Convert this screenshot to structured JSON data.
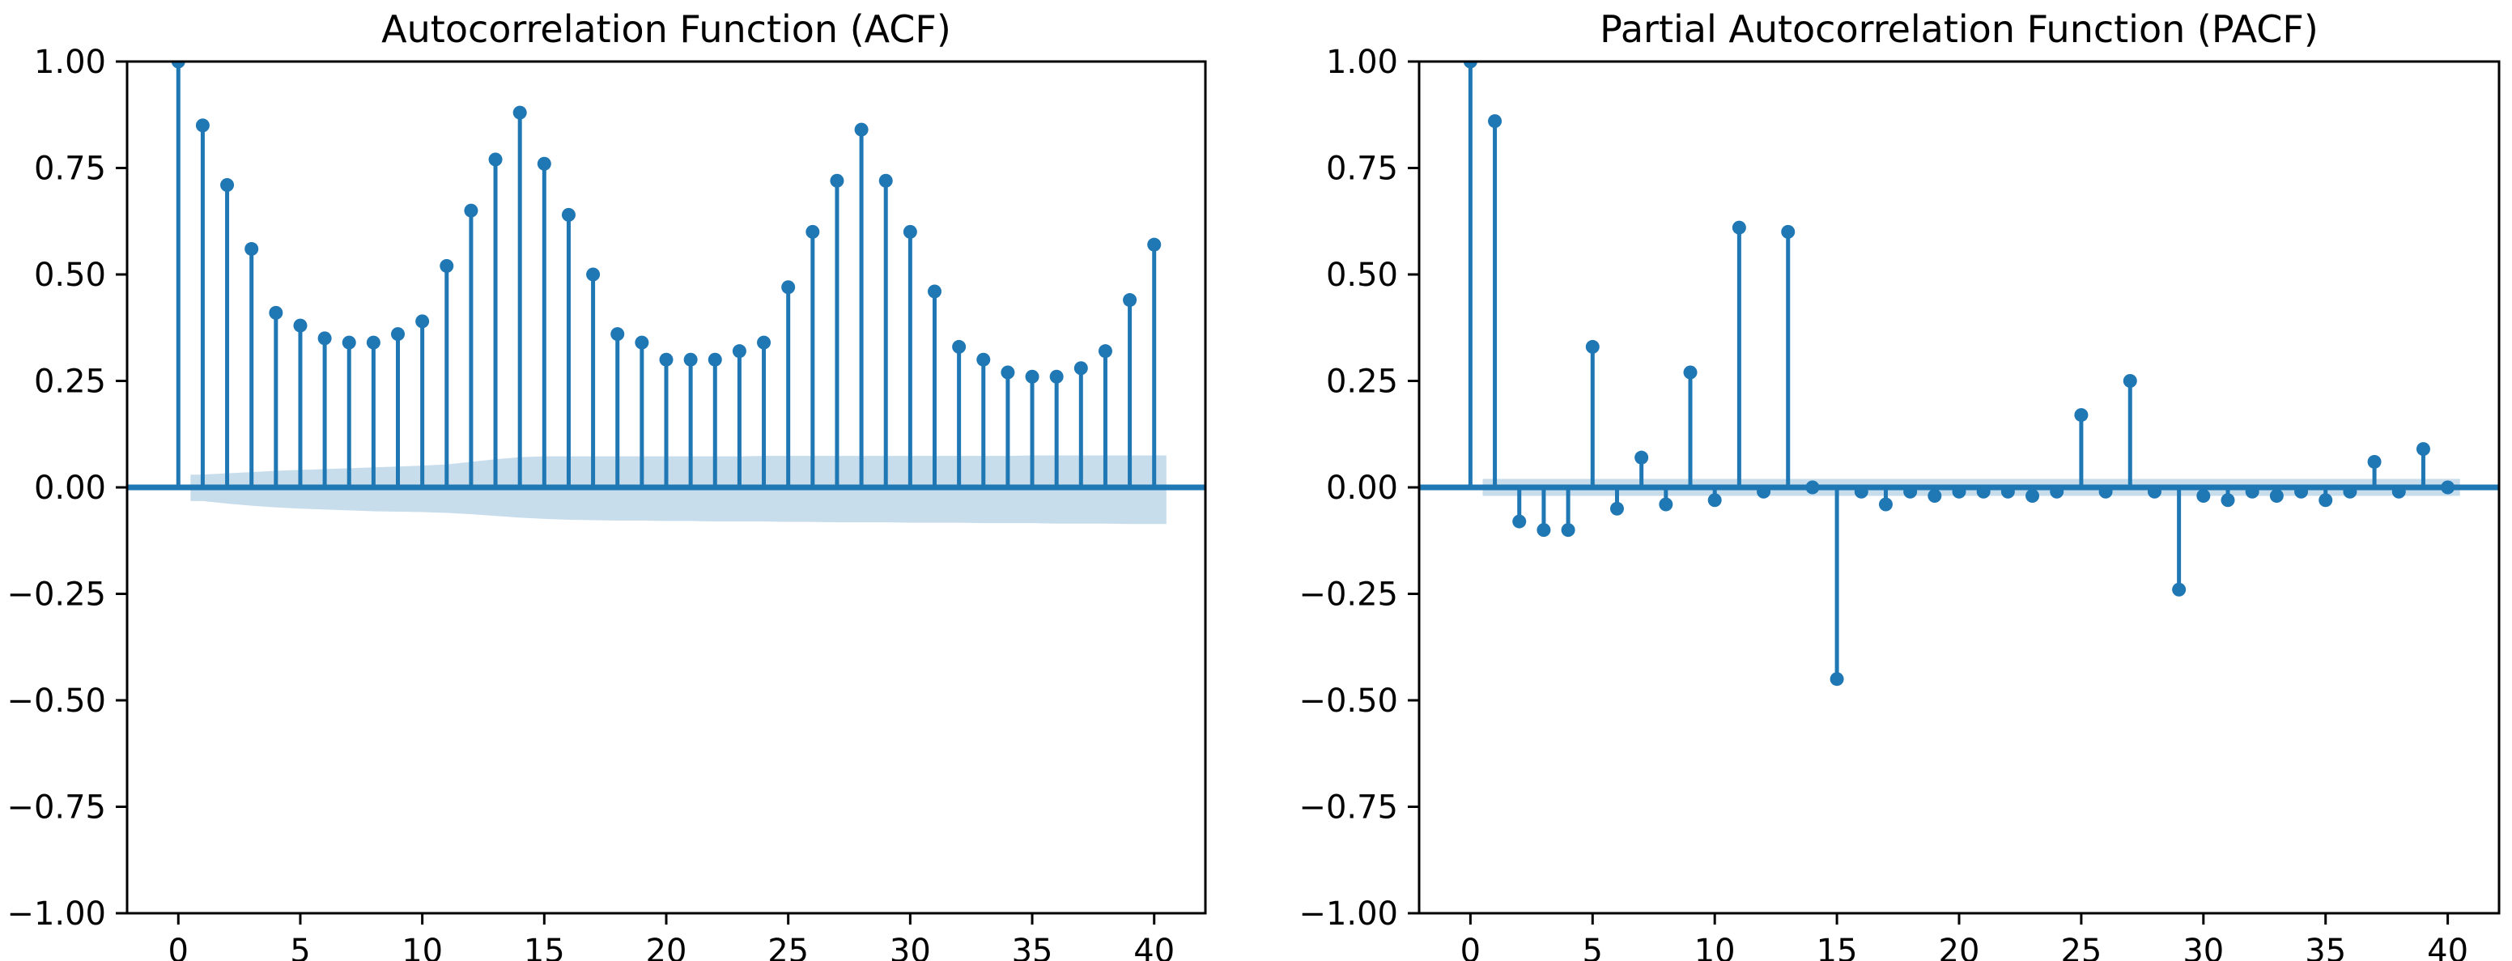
{
  "figure": {
    "background": "#ffffff",
    "panels": [
      "ACF",
      "PACF"
    ]
  },
  "chart_data": [
    {
      "type": "stem",
      "title": "Autocorrelation Function (ACF)",
      "xlabel": "",
      "ylabel": "",
      "xlim": [
        -2.1,
        42.1
      ],
      "ylim": [
        -1.0,
        1.0
      ],
      "grid": false,
      "legend": null,
      "lags": [
        0,
        1,
        2,
        3,
        4,
        5,
        6,
        7,
        8,
        9,
        10,
        11,
        12,
        13,
        14,
        15,
        16,
        17,
        18,
        19,
        20,
        21,
        22,
        23,
        24,
        25,
        26,
        27,
        28,
        29,
        30,
        31,
        32,
        33,
        34,
        35,
        36,
        37,
        38,
        39,
        40
      ],
      "values": [
        1.0,
        0.85,
        0.71,
        0.56,
        0.41,
        0.38,
        0.35,
        0.34,
        0.34,
        0.36,
        0.39,
        0.52,
        0.65,
        0.77,
        0.88,
        0.76,
        0.64,
        0.5,
        0.36,
        0.34,
        0.3,
        0.3,
        0.3,
        0.32,
        0.34,
        0.47,
        0.6,
        0.72,
        0.84,
        0.72,
        0.6,
        0.46,
        0.33,
        0.3,
        0.27,
        0.26,
        0.26,
        0.28,
        0.32,
        0.44,
        0.57
      ],
      "conf_band": {
        "start_lag": 1,
        "upper": [
          0.03,
          0.033,
          0.036,
          0.039,
          0.041,
          0.043,
          0.045,
          0.047,
          0.049,
          0.051,
          0.054,
          0.06,
          0.066,
          0.071,
          0.073,
          0.073,
          0.073,
          0.073,
          0.073,
          0.073,
          0.073,
          0.073,
          0.073,
          0.074,
          0.074,
          0.074,
          0.074,
          0.074,
          0.074,
          0.074,
          0.074,
          0.074,
          0.074,
          0.074,
          0.075,
          0.075,
          0.075,
          0.075,
          0.075,
          0.075
        ],
        "lower": [
          -0.032,
          -0.038,
          -0.043,
          -0.047,
          -0.05,
          -0.052,
          -0.054,
          -0.056,
          -0.057,
          -0.058,
          -0.06,
          -0.063,
          -0.067,
          -0.071,
          -0.074,
          -0.076,
          -0.077,
          -0.078,
          -0.078,
          -0.079,
          -0.079,
          -0.08,
          -0.08,
          -0.08,
          -0.081,
          -0.081,
          -0.082,
          -0.082,
          -0.082,
          -0.083,
          -0.083,
          -0.083,
          -0.084,
          -0.084,
          -0.084,
          -0.085,
          -0.085,
          -0.085,
          -0.086,
          -0.086
        ]
      },
      "yticks": {
        "values": [
          1.0,
          0.75,
          0.5,
          0.25,
          0.0,
          -0.25,
          -0.5,
          -0.75,
          -1.0
        ],
        "labels": [
          "1.00",
          "0.75",
          "0.50",
          "0.25",
          "0.00",
          "−0.25",
          "−0.50",
          "−0.75",
          "−1.00"
        ]
      },
      "xticks": {
        "values": [
          0,
          5,
          10,
          15,
          20,
          25,
          30,
          35,
          40
        ],
        "labels": [
          "0",
          "5",
          "10",
          "15",
          "20",
          "25",
          "30",
          "35",
          "40"
        ]
      },
      "colors": {
        "stem": "#1f77b4",
        "marker": "#1f77b4",
        "zero_line": "#1f77b4",
        "band": "rgba(31,119,180,0.25)",
        "axis": "#000000"
      }
    },
    {
      "type": "stem",
      "title": "Partial Autocorrelation Function (PACF)",
      "xlabel": "",
      "ylabel": "",
      "xlim": [
        -2.1,
        42.1
      ],
      "ylim": [
        -1.0,
        1.0
      ],
      "grid": false,
      "legend": null,
      "lags": [
        0,
        1,
        2,
        3,
        4,
        5,
        6,
        7,
        8,
        9,
        10,
        11,
        12,
        13,
        14,
        15,
        16,
        17,
        18,
        19,
        20,
        21,
        22,
        23,
        24,
        25,
        26,
        27,
        28,
        29,
        30,
        31,
        32,
        33,
        34,
        35,
        36,
        37,
        38,
        39,
        40
      ],
      "values": [
        1.0,
        0.86,
        -0.08,
        -0.1,
        -0.1,
        0.33,
        -0.05,
        0.07,
        -0.04,
        0.27,
        -0.03,
        0.61,
        -0.01,
        0.6,
        0.0,
        -0.45,
        -0.01,
        -0.04,
        -0.01,
        -0.02,
        -0.01,
        -0.01,
        -0.01,
        -0.02,
        -0.01,
        0.17,
        -0.01,
        0.25,
        -0.01,
        -0.24,
        -0.02,
        -0.03,
        -0.01,
        -0.02,
        -0.01,
        -0.03,
        -0.01,
        0.06,
        -0.01,
        0.09,
        0.0
      ],
      "conf_band": {
        "start_lag": 1,
        "upper": [
          0.02,
          0.02,
          0.02,
          0.02,
          0.02,
          0.02,
          0.02,
          0.02,
          0.02,
          0.02,
          0.02,
          0.02,
          0.02,
          0.02,
          0.02,
          0.02,
          0.02,
          0.02,
          0.02,
          0.02,
          0.02,
          0.02,
          0.02,
          0.02,
          0.02,
          0.02,
          0.02,
          0.02,
          0.02,
          0.02,
          0.02,
          0.02,
          0.02,
          0.02,
          0.02,
          0.02,
          0.02,
          0.02,
          0.02,
          0.02
        ],
        "lower": [
          -0.02,
          -0.02,
          -0.02,
          -0.02,
          -0.02,
          -0.02,
          -0.02,
          -0.02,
          -0.02,
          -0.02,
          -0.02,
          -0.02,
          -0.02,
          -0.02,
          -0.02,
          -0.02,
          -0.02,
          -0.02,
          -0.02,
          -0.02,
          -0.02,
          -0.02,
          -0.02,
          -0.02,
          -0.02,
          -0.02,
          -0.02,
          -0.02,
          -0.02,
          -0.02,
          -0.02,
          -0.02,
          -0.02,
          -0.02,
          -0.02,
          -0.02,
          -0.02,
          -0.02,
          -0.02,
          -0.02
        ]
      },
      "yticks": {
        "values": [
          1.0,
          0.75,
          0.5,
          0.25,
          0.0,
          -0.25,
          -0.5,
          -0.75,
          -1.0
        ],
        "labels": [
          "1.00",
          "0.75",
          "0.50",
          "0.25",
          "0.00",
          "−0.25",
          "−0.50",
          "−0.75",
          "−1.00"
        ]
      },
      "xticks": {
        "values": [
          0,
          5,
          10,
          15,
          20,
          25,
          30,
          35,
          40
        ],
        "labels": [
          "0",
          "5",
          "10",
          "15",
          "20",
          "25",
          "30",
          "35",
          "40"
        ]
      },
      "colors": {
        "stem": "#1f77b4",
        "marker": "#1f77b4",
        "zero_line": "#1f77b4",
        "band": "rgba(31,119,180,0.25)",
        "axis": "#000000"
      }
    }
  ]
}
